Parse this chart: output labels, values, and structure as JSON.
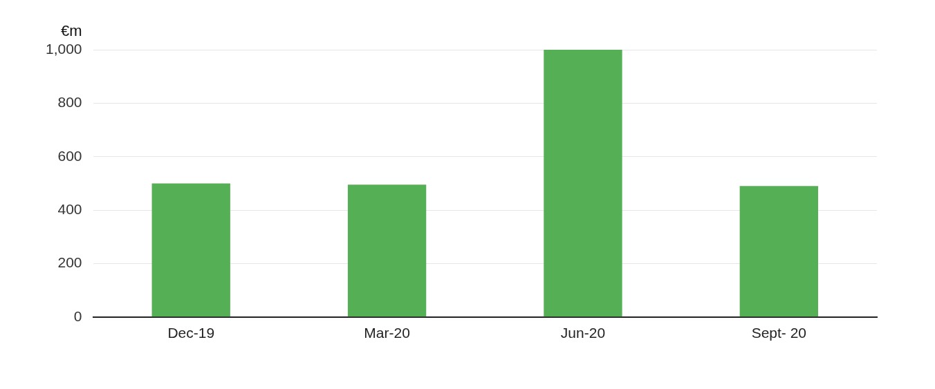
{
  "chart_data": {
    "type": "bar",
    "ylabel": "€m",
    "categories": [
      "Dec-19",
      "Mar-20",
      "Jun-20",
      "Sept- 20"
    ],
    "values": [
      500,
      495,
      1000,
      490
    ],
    "color": "#55b055",
    "ylim": [
      0,
      1000
    ],
    "yticks": [
      0,
      200,
      400,
      600,
      800,
      {
        "value": 1000,
        "label": "1,000"
      }
    ],
    "grid": "y"
  }
}
